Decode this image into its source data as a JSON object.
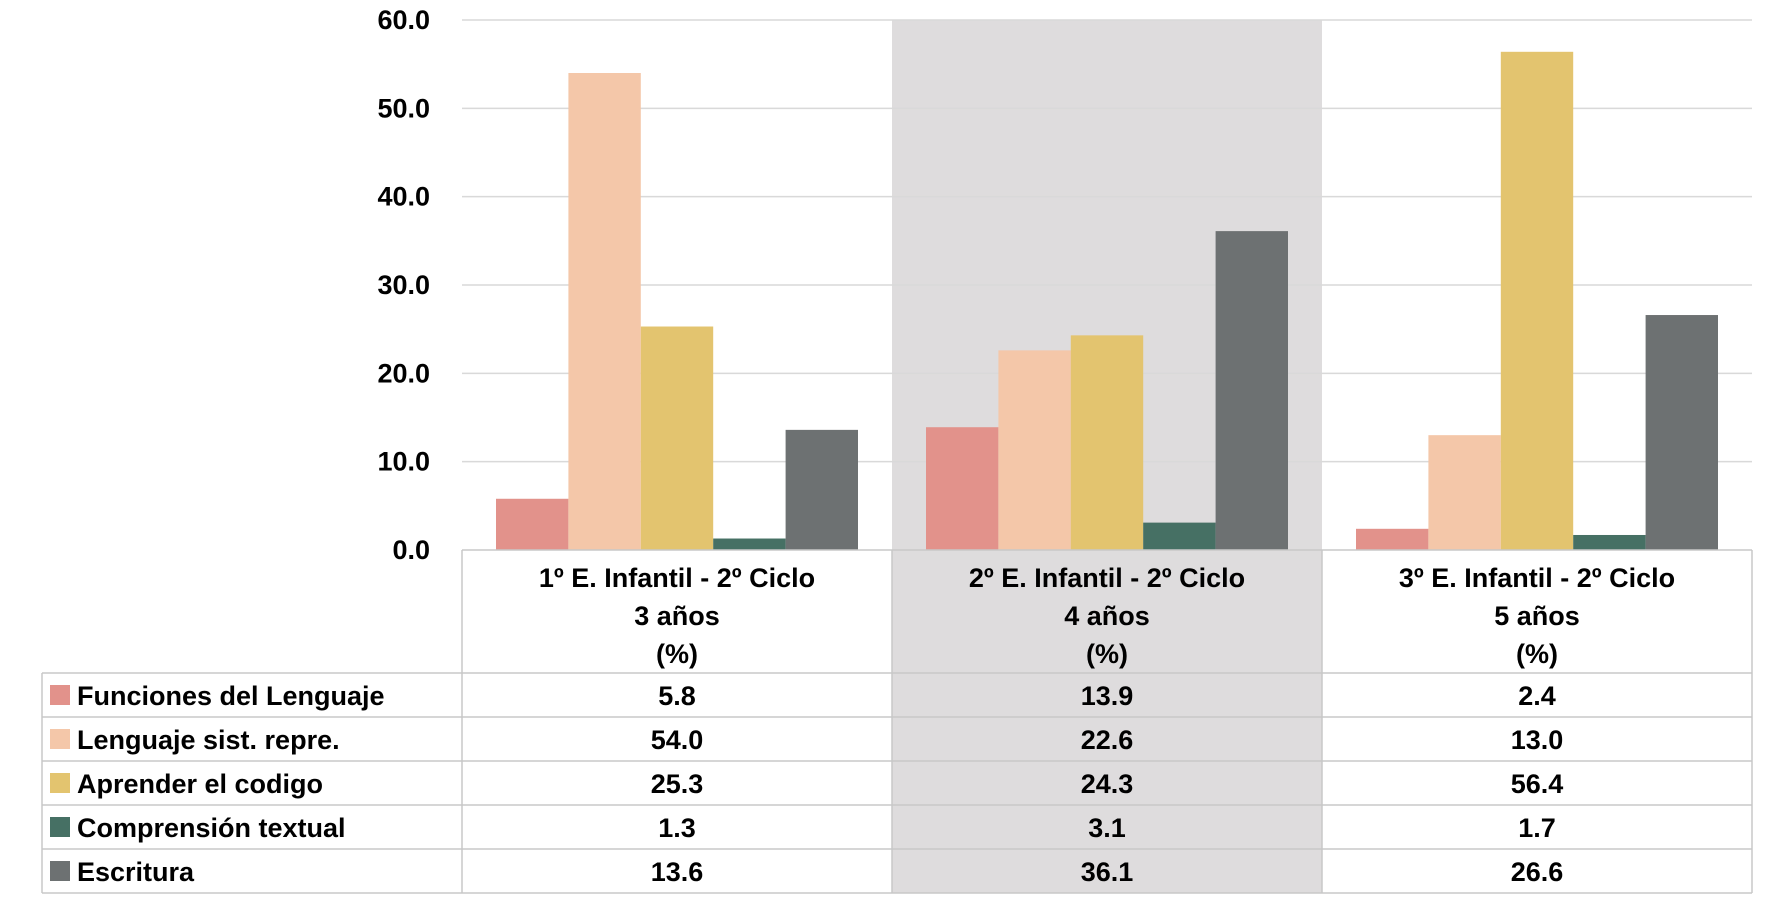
{
  "chart_data": {
    "type": "bar",
    "ylim": [
      0,
      60
    ],
    "yticks": [
      "0.0",
      "10.0",
      "20.0",
      "30.0",
      "40.0",
      "50.0",
      "60.0"
    ],
    "grid": true,
    "legend_placement": "data-table-left",
    "categories": [
      [
        "1º E. Infantil -  2º Ciclo",
        "3 años",
        "(%)"
      ],
      [
        "2º E. Infantil -  2º Ciclo",
        "4 años",
        "(%)"
      ],
      [
        "3º E. Infantil -  2º Ciclo",
        "5 años",
        "(%)"
      ]
    ],
    "highlight_category_index": 1,
    "highlight_color": "#dedcdd",
    "series": [
      {
        "name": "Funciones del Lenguaje",
        "color": "#e2928b",
        "values": [
          5.8,
          13.9,
          2.4
        ],
        "labels": [
          "5.8",
          "13.9",
          "2.4"
        ]
      },
      {
        "name": "Lenguaje sist. repre.",
        "color": "#f4c7a9",
        "values": [
          54.0,
          22.6,
          13.0
        ],
        "labels": [
          "54.0",
          "22.6",
          "13.0"
        ]
      },
      {
        "name": "Aprender el codigo",
        "color": "#e3c46f",
        "values": [
          25.3,
          24.3,
          56.4
        ],
        "labels": [
          "25.3",
          "24.3",
          "56.4"
        ]
      },
      {
        "name": "Comprensión textual",
        "color": "#467064",
        "values": [
          1.3,
          3.1,
          1.7
        ],
        "labels": [
          "1.3",
          "3.1",
          "1.7"
        ]
      },
      {
        "name": "Escritura",
        "color": "#6d7172",
        "values": [
          13.6,
          36.1,
          26.6
        ],
        "labels": [
          "13.6",
          "36.1",
          "26.6"
        ]
      }
    ]
  }
}
